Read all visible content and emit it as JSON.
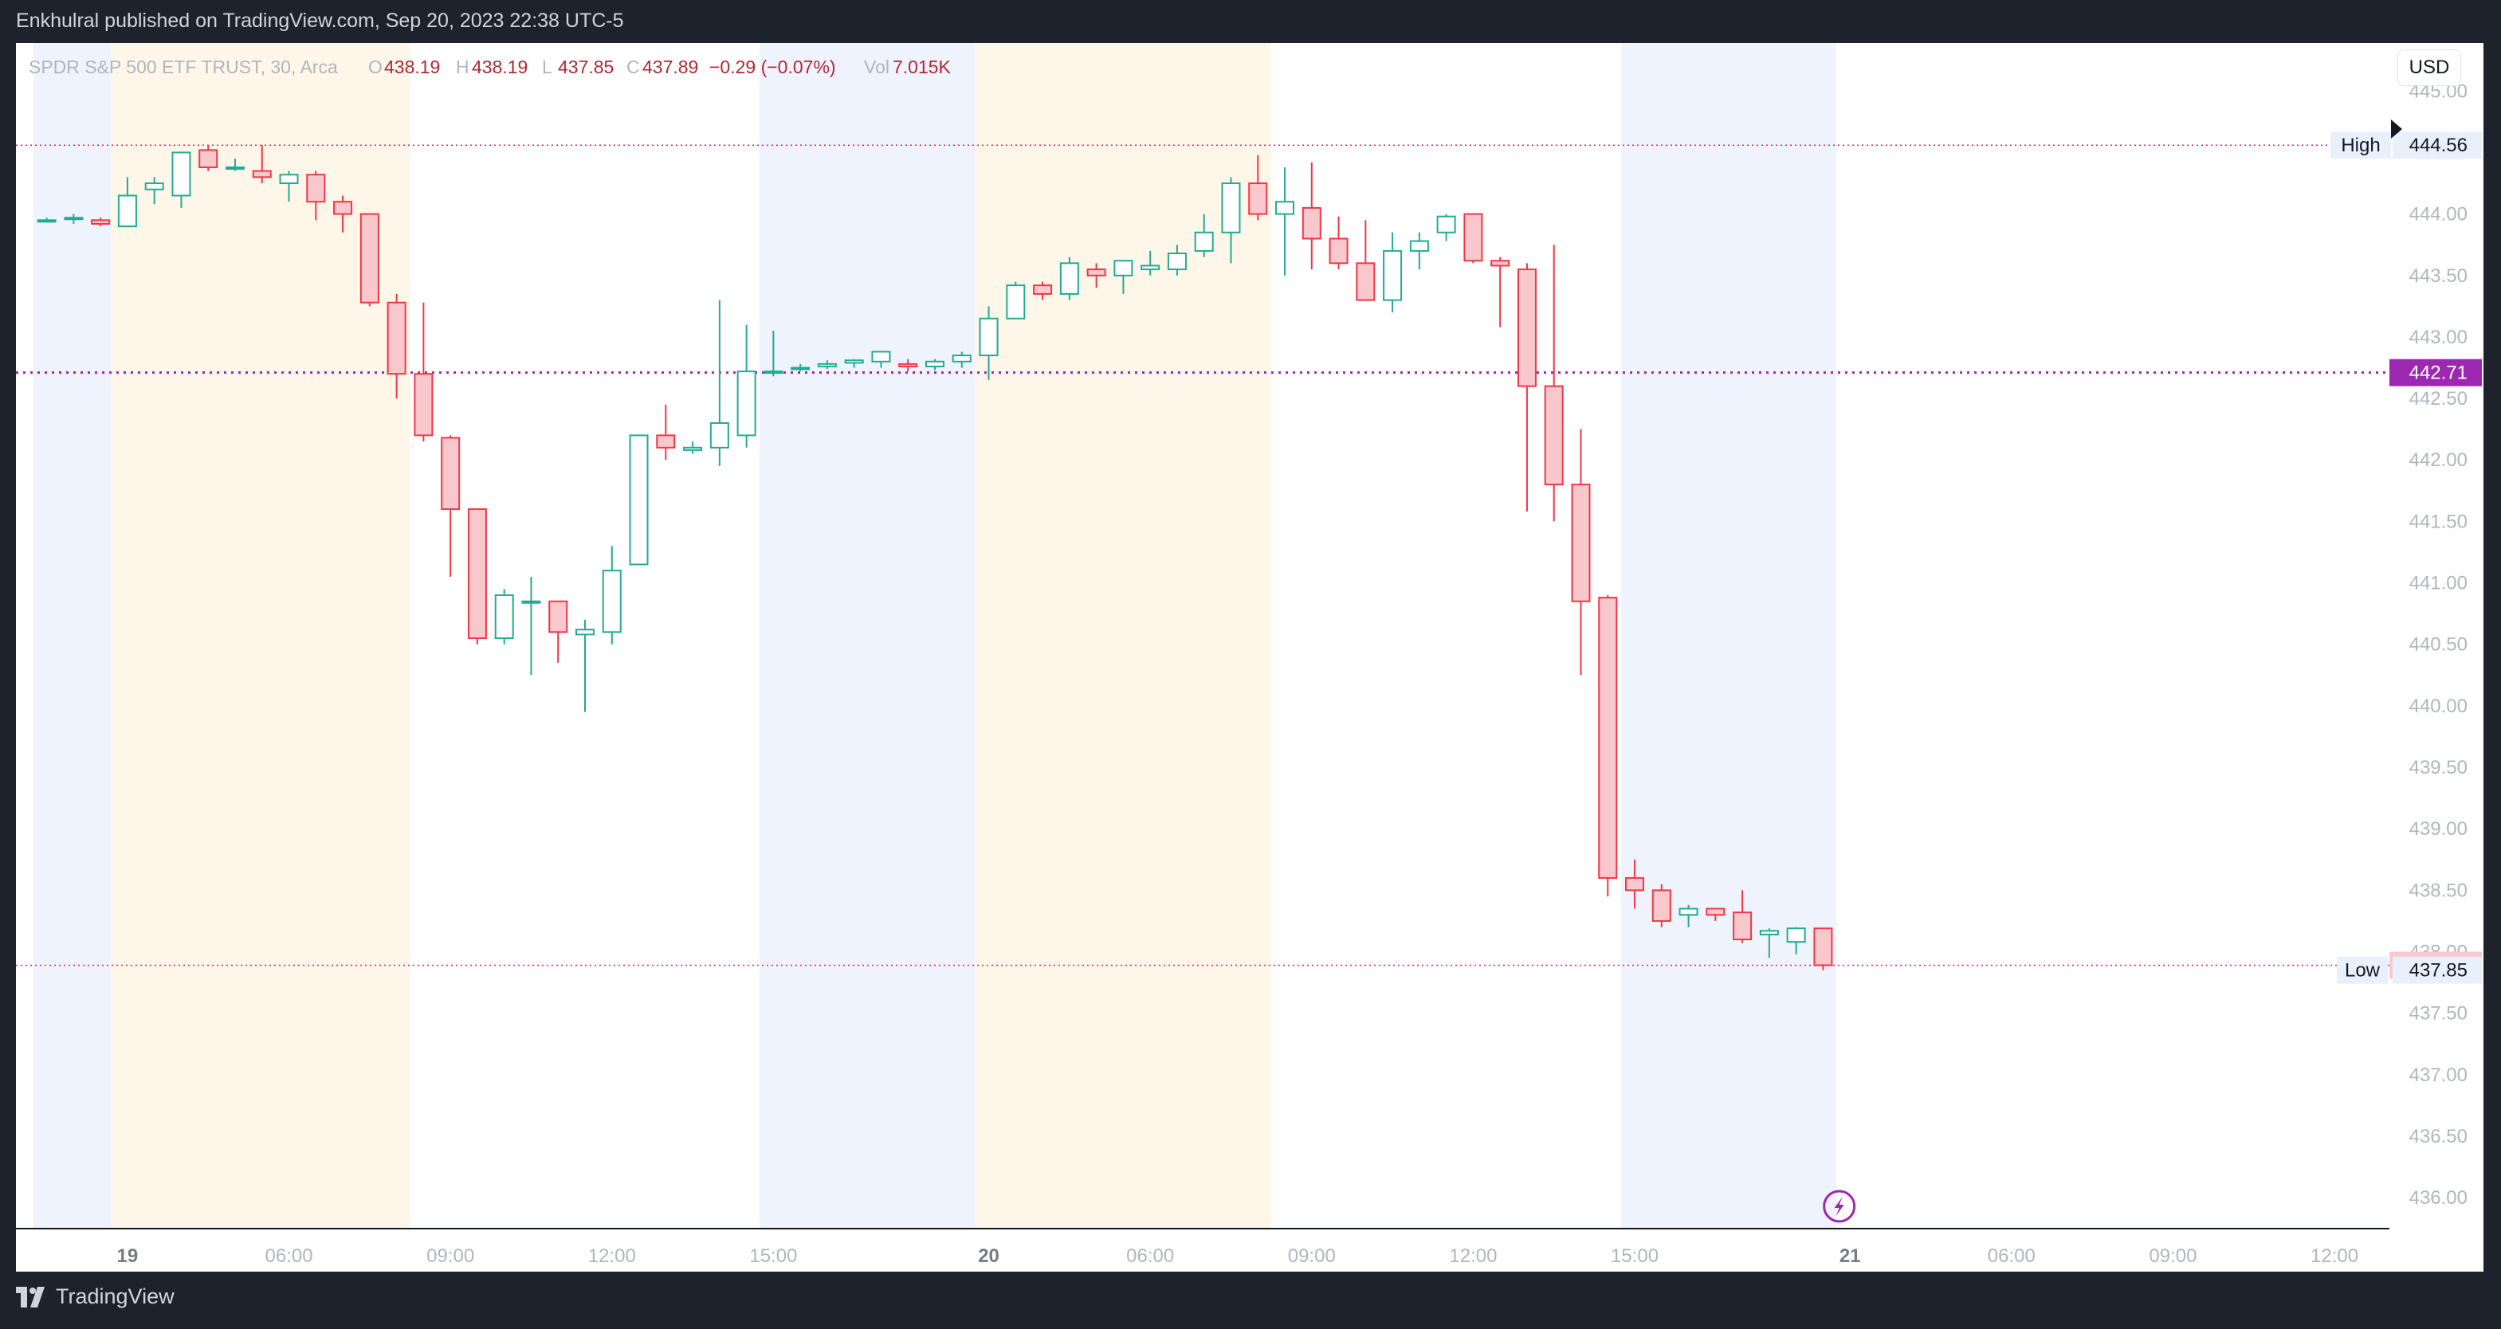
{
  "header": {
    "published": "Enkhulral published on TradingView.com, Sep 20, 2023 22:38 UTC-5"
  },
  "legend": {
    "symbol": "SPDR S&P 500 ETF TRUST, 30, Arca",
    "o_label": "O",
    "o_value": "438.19",
    "h_label": "H",
    "h_value": "438.19",
    "l_label": "L",
    "l_value": "437.85",
    "c_label": "C",
    "c_value": "437.89",
    "change": "−0.29 (−0.07%)",
    "vol_label": "Vol",
    "vol_value": "7.015K"
  },
  "currency": "USD",
  "footer": {
    "brand": "TradingView"
  },
  "colors": {
    "up": "#22ab94",
    "down": "#f23645",
    "down_fill": "#f8c8cd",
    "session_pre": "#eef3fd",
    "session_post": "#fef6e9",
    "dotted_hl": "#e91e63",
    "dotted_mid": "#9c27b0",
    "axis_text": "#b2b5be",
    "axis_text_dark": "#787b86"
  },
  "chart_data": {
    "type": "candlestick",
    "ylim": [
      435.8,
      445.3
    ],
    "yticks": [
      "445.00",
      "444.50",
      "444.00",
      "443.50",
      "443.00",
      "442.50",
      "442.00",
      "441.50",
      "441.00",
      "440.50",
      "440.00",
      "439.50",
      "439.00",
      "438.50",
      "438.00",
      "437.50",
      "437.00",
      "436.50",
      "436.00"
    ],
    "xticks": [
      {
        "label": "19",
        "bold": true,
        "bar": 3
      },
      {
        "label": "06:00",
        "bar": 9
      },
      {
        "label": "09:00",
        "bar": 15
      },
      {
        "label": "12:00",
        "bar": 21
      },
      {
        "label": "15:00",
        "bar": 27
      },
      {
        "label": "20",
        "bold": true,
        "bar": 35
      },
      {
        "label": "06:00",
        "bar": 41
      },
      {
        "label": "09:00",
        "bar": 47
      },
      {
        "label": "12:00",
        "bar": 53
      },
      {
        "label": "15:00",
        "bar": 59
      },
      {
        "label": "21",
        "bold": true,
        "bar": 67
      },
      {
        "label": "06:00",
        "bar": 73
      },
      {
        "label": "09:00",
        "bar": 79
      },
      {
        "label": "12:00",
        "bar": 85
      }
    ],
    "sessions": [
      {
        "type": "pre",
        "from": -0.5,
        "to": 2.4
      },
      {
        "type": "post",
        "from": 2.4,
        "to": 13.5
      },
      {
        "type": "pre",
        "from": 26.5,
        "to": 34.5
      },
      {
        "type": "post",
        "from": 34.5,
        "to": 45.5
      },
      {
        "type": "pre",
        "from": 58.5,
        "to": 66.5
      }
    ],
    "bars": [
      [
        443.95,
        443.97,
        443.94,
        443.95
      ],
      [
        443.97,
        444.0,
        443.92,
        443.97
      ],
      [
        443.95,
        443.97,
        443.9,
        443.92
      ],
      [
        443.9,
        444.3,
        443.9,
        444.15
      ],
      [
        444.2,
        444.3,
        444.08,
        444.25
      ],
      [
        444.15,
        444.5,
        444.05,
        444.5
      ],
      [
        444.52,
        444.56,
        444.35,
        444.38
      ],
      [
        444.38,
        444.45,
        444.35,
        444.38
      ],
      [
        444.35,
        444.56,
        444.25,
        444.3
      ],
      [
        444.25,
        444.35,
        444.1,
        444.32
      ],
      [
        444.32,
        444.35,
        443.95,
        444.1
      ],
      [
        444.1,
        444.15,
        443.85,
        444.0
      ],
      [
        444.0,
        444.0,
        443.25,
        443.28
      ],
      [
        443.28,
        443.35,
        442.5,
        442.7
      ],
      [
        442.7,
        443.28,
        442.15,
        442.2
      ],
      [
        442.18,
        442.2,
        441.05,
        441.6
      ],
      [
        441.6,
        441.6,
        440.5,
        440.55
      ],
      [
        440.55,
        440.95,
        440.5,
        440.9
      ],
      [
        440.85,
        441.05,
        440.25,
        440.85
      ],
      [
        440.85,
        440.85,
        440.35,
        440.6
      ],
      [
        440.58,
        440.7,
        439.95,
        440.62
      ],
      [
        440.6,
        441.3,
        440.5,
        441.1
      ],
      [
        441.15,
        442.2,
        441.15,
        442.2
      ],
      [
        442.2,
        442.45,
        442.0,
        442.1
      ],
      [
        442.08,
        442.15,
        442.05,
        442.1
      ],
      [
        442.1,
        443.3,
        441.95,
        442.3
      ],
      [
        442.2,
        443.1,
        442.1,
        442.72
      ],
      [
        442.72,
        443.05,
        442.68,
        442.72
      ],
      [
        442.75,
        442.78,
        442.72,
        442.75
      ],
      [
        442.76,
        442.81,
        442.74,
        442.78
      ],
      [
        442.79,
        442.82,
        442.75,
        442.81
      ],
      [
        442.8,
        442.88,
        442.75,
        442.88
      ],
      [
        442.78,
        442.82,
        442.72,
        442.76
      ],
      [
        442.76,
        442.82,
        442.73,
        442.8
      ],
      [
        442.8,
        442.88,
        442.75,
        442.85
      ],
      [
        442.85,
        443.25,
        442.65,
        443.15
      ],
      [
        443.15,
        443.45,
        443.15,
        443.42
      ],
      [
        443.42,
        443.45,
        443.3,
        443.35
      ],
      [
        443.35,
        443.65,
        443.3,
        443.6
      ],
      [
        443.55,
        443.6,
        443.4,
        443.5
      ],
      [
        443.5,
        443.62,
        443.35,
        443.62
      ],
      [
        443.55,
        443.7,
        443.5,
        443.58
      ],
      [
        443.55,
        443.75,
        443.5,
        443.68
      ],
      [
        443.7,
        444.0,
        443.65,
        443.85
      ],
      [
        443.85,
        444.3,
        443.6,
        444.25
      ],
      [
        444.25,
        444.48,
        443.95,
        444.0
      ],
      [
        444.0,
        444.38,
        443.5,
        444.1
      ],
      [
        444.05,
        444.42,
        443.55,
        443.8
      ],
      [
        443.8,
        443.98,
        443.55,
        443.6
      ],
      [
        443.6,
        443.95,
        443.3,
        443.3
      ],
      [
        443.3,
        443.85,
        443.2,
        443.7
      ],
      [
        443.7,
        443.85,
        443.55,
        443.78
      ],
      [
        443.85,
        444.0,
        443.78,
        443.98
      ],
      [
        444.0,
        444.0,
        443.6,
        443.62
      ],
      [
        443.62,
        443.65,
        443.08,
        443.58
      ],
      [
        443.55,
        443.6,
        441.58,
        442.6
      ],
      [
        442.6,
        443.75,
        441.5,
        441.8
      ],
      [
        441.8,
        442.25,
        440.25,
        440.85
      ],
      [
        440.88,
        440.9,
        438.45,
        438.6
      ],
      [
        438.6,
        438.75,
        438.35,
        438.5
      ],
      [
        438.5,
        438.55,
        438.2,
        438.25
      ],
      [
        438.3,
        438.38,
        438.2,
        438.35
      ],
      [
        438.35,
        438.35,
        438.25,
        438.3
      ],
      [
        438.32,
        438.5,
        438.07,
        438.1
      ],
      [
        438.14,
        438.19,
        437.95,
        438.17
      ],
      [
        438.08,
        438.2,
        437.98,
        438.19
      ],
      [
        438.19,
        438.19,
        437.85,
        437.89
      ]
    ],
    "price_lines": [
      {
        "label": "High",
        "value": 444.56,
        "text": "444.56",
        "style": "hl"
      },
      {
        "value": 442.71,
        "text": "442.71",
        "style": "mid"
      },
      {
        "value": 437.89,
        "text": "437.89",
        "style": "last"
      },
      {
        "label": "Low",
        "value": 437.85,
        "text": "437.85",
        "style": "low"
      }
    ]
  }
}
